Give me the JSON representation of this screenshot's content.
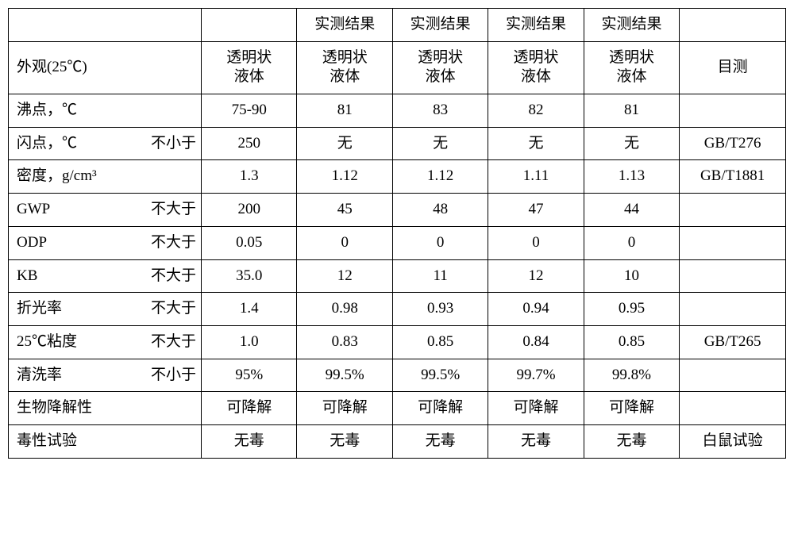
{
  "header": {
    "c3": "实测结果",
    "c4": "实测结果",
    "c5": "实测结果",
    "c6": "实测结果"
  },
  "rows": [
    {
      "label": "外观(25℃)",
      "qual": "",
      "c2": "透明状液体",
      "c3": "透明状液体",
      "c4": "透明状液体",
      "c5": "透明状液体",
      "c6": "透明状液体",
      "c7": "目测"
    },
    {
      "label": "沸点，℃",
      "qual": "",
      "c2": "75-90",
      "c3": "81",
      "c4": "83",
      "c5": "82",
      "c6": "81",
      "c7": ""
    },
    {
      "label": "闪点，℃",
      "qual": "不小于",
      "c2": "250",
      "c3": "无",
      "c4": "无",
      "c5": "无",
      "c6": "无",
      "c7": "GB/T276"
    },
    {
      "label": "密度，g/cm³",
      "qual": "",
      "c2": "1.3",
      "c3": "1.12",
      "c4": "1.12",
      "c5": "1.11",
      "c6": "1.13",
      "c7": "GB/T1881"
    },
    {
      "label": "GWP",
      "qual": "不大于",
      "c2": "200",
      "c3": "45",
      "c4": "48",
      "c5": "47",
      "c6": "44",
      "c7": ""
    },
    {
      "label": "ODP",
      "qual": "不大于",
      "c2": "0.05",
      "c3": "0",
      "c4": "0",
      "c5": "0",
      "c6": "0",
      "c7": ""
    },
    {
      "label": "KB",
      "qual": "不大于",
      "c2": "35.0",
      "c3": "12",
      "c4": "11",
      "c5": "12",
      "c6": "10",
      "c7": ""
    },
    {
      "label": "折光率",
      "qual": "不大于",
      "c2": "1.4",
      "c3": "0.98",
      "c4": "0.93",
      "c5": "0.94",
      "c6": "0.95",
      "c7": ""
    },
    {
      "label": "25℃粘度",
      "qual": "不大于",
      "c2": "1.0",
      "c3": "0.83",
      "c4": "0.85",
      "c5": "0.84",
      "c6": "0.85",
      "c7": "GB/T265"
    },
    {
      "label": "清洗率",
      "qual": "不小于",
      "c2": "95%",
      "c3": "99.5%",
      "c4": "99.5%",
      "c5": "99.7%",
      "c6": "99.8%",
      "c7": ""
    },
    {
      "label": "生物降解性",
      "qual": "",
      "c2": "可降解",
      "c3": "可降解",
      "c4": "可降解",
      "c5": "可降解",
      "c6": "可降解",
      "c7": ""
    },
    {
      "label": "毒性试验",
      "qual": "",
      "c2": "无毒",
      "c3": "无毒",
      "c4": "无毒",
      "c5": "无毒",
      "c6": "无毒",
      "c7": "白鼠试验"
    }
  ]
}
